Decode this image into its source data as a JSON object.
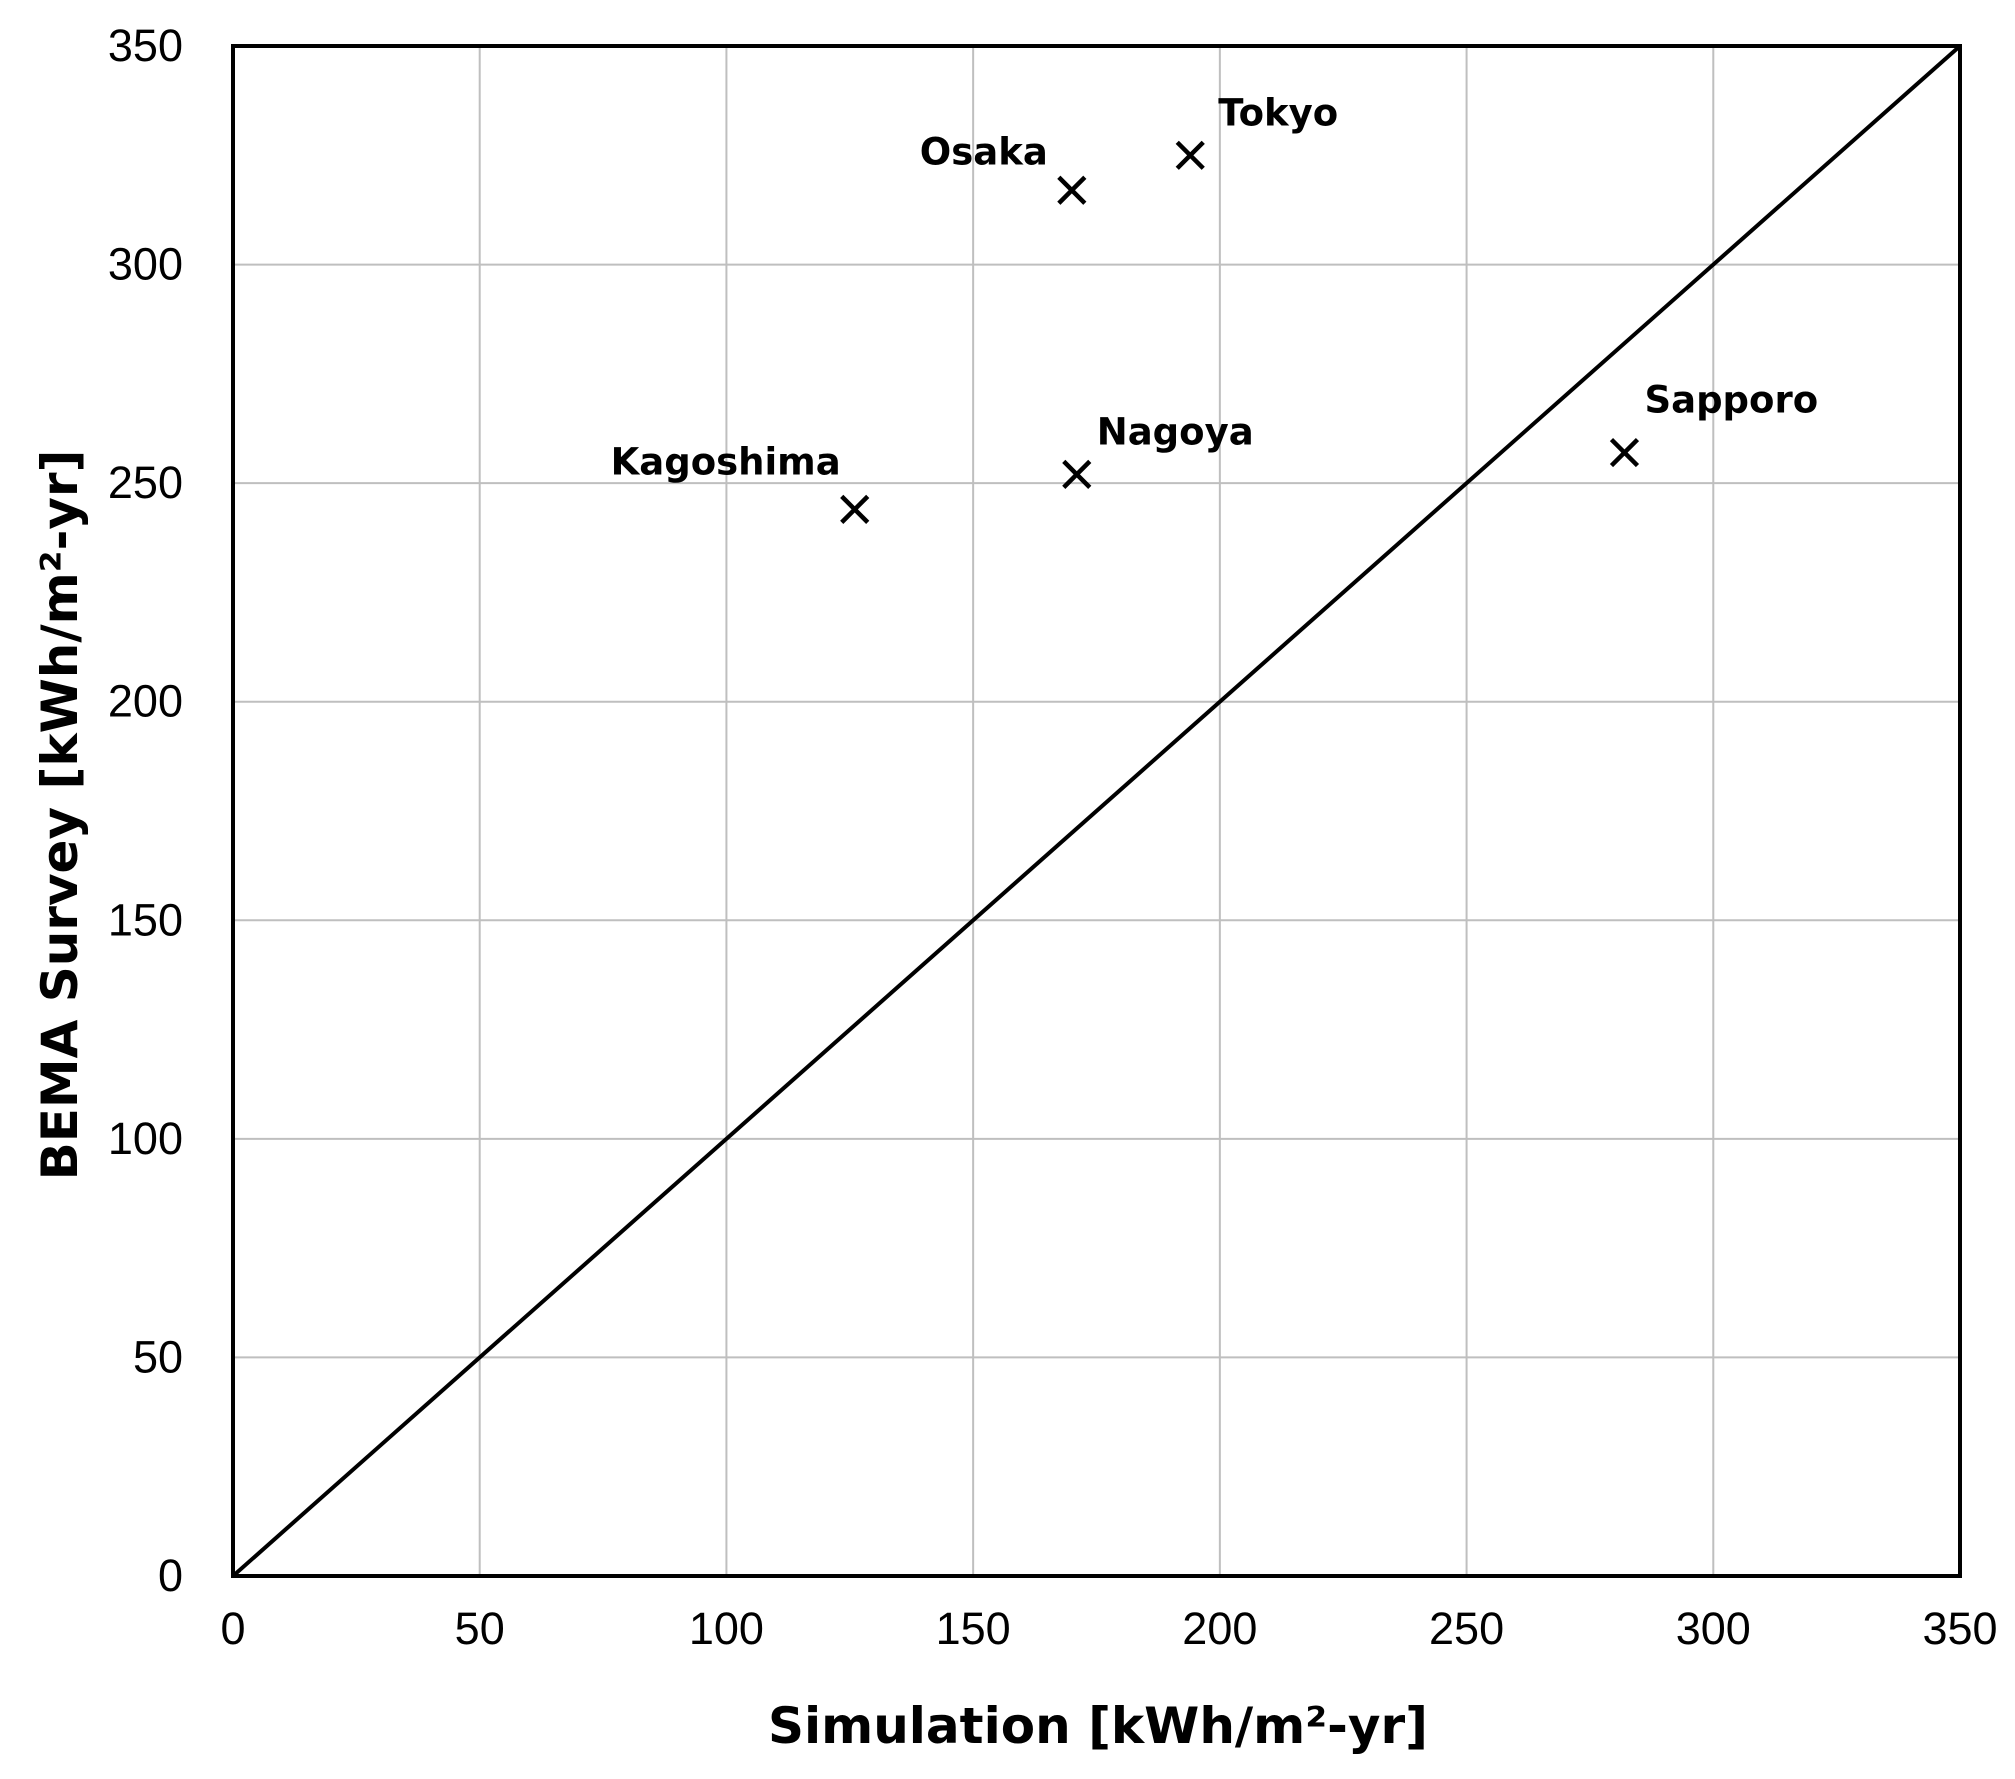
{
  "chart_data": {
    "type": "scatter",
    "title": "",
    "xlabel": "Simulation [kWh/m²-yr]",
    "ylabel": "BEMA Survey [kWh/m²-yr]",
    "xlim": [
      0,
      350
    ],
    "ylim": [
      0,
      350
    ],
    "xticks": [
      0,
      50,
      100,
      150,
      200,
      250,
      300,
      350
    ],
    "yticks": [
      0,
      50,
      100,
      150,
      200,
      250,
      300,
      350
    ],
    "grid": true,
    "legend": "none",
    "marker": "x",
    "colors": {
      "marker": "#000000",
      "grid": "#bfbfbf",
      "reference_line": "#000000"
    },
    "reference_line": {
      "from": [
        0,
        0
      ],
      "to": [
        350,
        350
      ]
    },
    "points": [
      {
        "label": "Tokyo",
        "x": 194,
        "y": 325
      },
      {
        "label": "Osaka",
        "x": 170,
        "y": 317
      },
      {
        "label": "Nagoya",
        "x": 171,
        "y": 252
      },
      {
        "label": "Kagoshima",
        "x": 126,
        "y": 244
      },
      {
        "label": "Sapporo",
        "x": 282,
        "y": 257
      }
    ]
  }
}
